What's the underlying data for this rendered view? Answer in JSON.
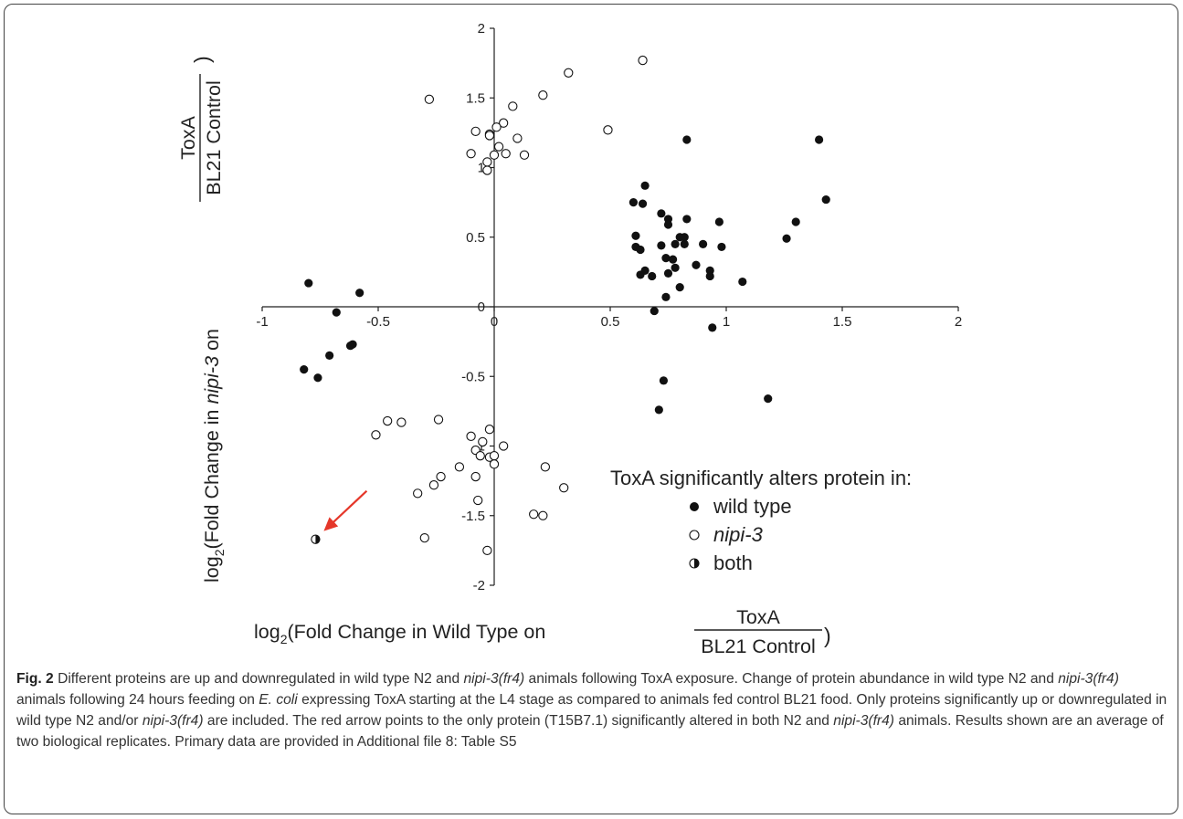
{
  "chart_data": {
    "type": "scatter",
    "xlim": [
      -1,
      2
    ],
    "ylim": [
      -2,
      2
    ],
    "x_ticks": [
      "-1",
      "-0.5",
      "0",
      "0.5",
      "1",
      "1.5",
      "2"
    ],
    "y_ticks": [
      "-2",
      "-1.5",
      "-1",
      "-0.5",
      "0",
      "0.5",
      "1",
      "1.5",
      "2"
    ],
    "y_label": {
      "prefix": "log",
      "sub": "2",
      "mid": "(Fold Change in ",
      "italic": "nipi-3",
      "suffix": " on ",
      "numerator": "ToxA",
      "denominator": "BL21 Control",
      "close": ")"
    },
    "x_label": {
      "prefix": "log",
      "sub": "2",
      "mid": "(Fold Change in Wild Type on ",
      "numerator": "ToxA",
      "denominator": "BL21 Control",
      "close": ")"
    },
    "legend": {
      "title": "ToxA significantly alters protein in:",
      "placement": "bottom-right",
      "items": [
        {
          "label": "wild type",
          "italic": false,
          "marker": "filled"
        },
        {
          "label": "nipi-3",
          "italic": true,
          "marker": "open"
        },
        {
          "label": "both",
          "italic": false,
          "marker": "half"
        }
      ]
    },
    "series": [
      {
        "marker": "filled",
        "points": [
          [
            0.83,
            1.2
          ],
          [
            1.4,
            1.2
          ],
          [
            1.43,
            0.77
          ],
          [
            0.65,
            0.87
          ],
          [
            0.6,
            0.75
          ],
          [
            0.64,
            0.74
          ],
          [
            0.72,
            0.67
          ],
          [
            0.75,
            0.63
          ],
          [
            0.75,
            0.59
          ],
          [
            0.83,
            0.63
          ],
          [
            0.97,
            0.61
          ],
          [
            1.3,
            0.61
          ],
          [
            0.61,
            0.51
          ],
          [
            0.8,
            0.5
          ],
          [
            0.82,
            0.5
          ],
          [
            1.26,
            0.49
          ],
          [
            0.9,
            0.45
          ],
          [
            0.61,
            0.43
          ],
          [
            0.72,
            0.44
          ],
          [
            0.78,
            0.45
          ],
          [
            0.82,
            0.45
          ],
          [
            0.63,
            0.41
          ],
          [
            0.98,
            0.43
          ],
          [
            0.74,
            0.35
          ],
          [
            0.77,
            0.34
          ],
          [
            0.87,
            0.3
          ],
          [
            0.78,
            0.28
          ],
          [
            0.65,
            0.26
          ],
          [
            0.93,
            0.26
          ],
          [
            0.63,
            0.23
          ],
          [
            0.68,
            0.22
          ],
          [
            0.75,
            0.24
          ],
          [
            0.93,
            0.22
          ],
          [
            1.07,
            0.18
          ],
          [
            0.8,
            0.14
          ],
          [
            0.74,
            0.07
          ],
          [
            0.69,
            -0.03
          ],
          [
            0.94,
            -0.15
          ],
          [
            -0.8,
            0.17
          ],
          [
            -0.58,
            0.1
          ],
          [
            -0.68,
            -0.04
          ],
          [
            -0.61,
            -0.27
          ],
          [
            -0.62,
            -0.28
          ],
          [
            -0.71,
            -0.35
          ],
          [
            -0.82,
            -0.45
          ],
          [
            -0.76,
            -0.51
          ],
          [
            0.73,
            -0.53
          ],
          [
            1.18,
            -0.66
          ],
          [
            0.71,
            -0.74
          ]
        ]
      },
      {
        "marker": "open",
        "points": [
          [
            0.64,
            1.77
          ],
          [
            0.32,
            1.68
          ],
          [
            -0.28,
            1.49
          ],
          [
            0.21,
            1.52
          ],
          [
            0.08,
            1.44
          ],
          [
            0.04,
            1.32
          ],
          [
            0.01,
            1.29
          ],
          [
            -0.08,
            1.26
          ],
          [
            -0.02,
            1.24
          ],
          [
            -0.02,
            1.23
          ],
          [
            0.1,
            1.21
          ],
          [
            0.49,
            1.27
          ],
          [
            0.02,
            1.15
          ],
          [
            -0.1,
            1.1
          ],
          [
            0.0,
            1.09
          ],
          [
            0.05,
            1.1
          ],
          [
            0.13,
            1.09
          ],
          [
            -0.03,
            1.04
          ],
          [
            -0.03,
            0.98
          ],
          [
            -0.51,
            -0.92
          ],
          [
            -0.46,
            -0.82
          ],
          [
            -0.4,
            -0.83
          ],
          [
            -0.24,
            -0.81
          ],
          [
            -0.1,
            -0.93
          ],
          [
            -0.02,
            -0.88
          ],
          [
            -0.05,
            -0.97
          ],
          [
            0.04,
            -1.0
          ],
          [
            -0.08,
            -1.03
          ],
          [
            -0.06,
            -1.07
          ],
          [
            -0.02,
            -1.08
          ],
          [
            0.0,
            -1.07
          ],
          [
            -0.15,
            -1.15
          ],
          [
            0.0,
            -1.13
          ],
          [
            0.22,
            -1.15
          ],
          [
            -0.23,
            -1.22
          ],
          [
            -0.26,
            -1.28
          ],
          [
            -0.08,
            -1.22
          ],
          [
            0.3,
            -1.3
          ],
          [
            -0.33,
            -1.34
          ],
          [
            -0.07,
            -1.39
          ],
          [
            0.17,
            -1.49
          ],
          [
            0.21,
            -1.5
          ],
          [
            -0.3,
            -1.66
          ],
          [
            -0.03,
            -1.75
          ]
        ]
      },
      {
        "marker": "half",
        "points": [
          [
            -0.77,
            -1.67
          ]
        ]
      }
    ]
  },
  "caption": {
    "fig": "Fig. 2",
    "parts": [
      {
        "t": " Different proteins are up and downregulated in wild type N2 and ",
        "i": false
      },
      {
        "t": "nipi-3(fr4)",
        "i": true
      },
      {
        "t": " animals following ToxA exposure. Change of protein abundance in wild type N2 and ",
        "i": false
      },
      {
        "t": "nipi-3(fr4)",
        "i": true
      },
      {
        "t": " animals following 24 hours feeding on ",
        "i": false
      },
      {
        "t": "E. coli",
        "i": true
      },
      {
        "t": " expressing ToxA starting at the L4 stage as compared to animals fed control BL21 food. Only proteins significantly up or downregulated in wild type N2 and/or ",
        "i": false
      },
      {
        "t": "nipi-3(fr4)",
        "i": true
      },
      {
        "t": " are included. The red arrow points to the only protein (T15B7.1) significantly altered in both N2 and ",
        "i": false
      },
      {
        "t": "nipi-3(fr4)",
        "i": true
      },
      {
        "t": " animals. Results shown are an average of two biological replicates. Primary data are provided in Additional file 8: Table S5",
        "i": false
      }
    ]
  },
  "colors": {
    "marker": "#111111",
    "arrow": "#e5372a",
    "axis": "#222222",
    "frame": "#444444"
  }
}
